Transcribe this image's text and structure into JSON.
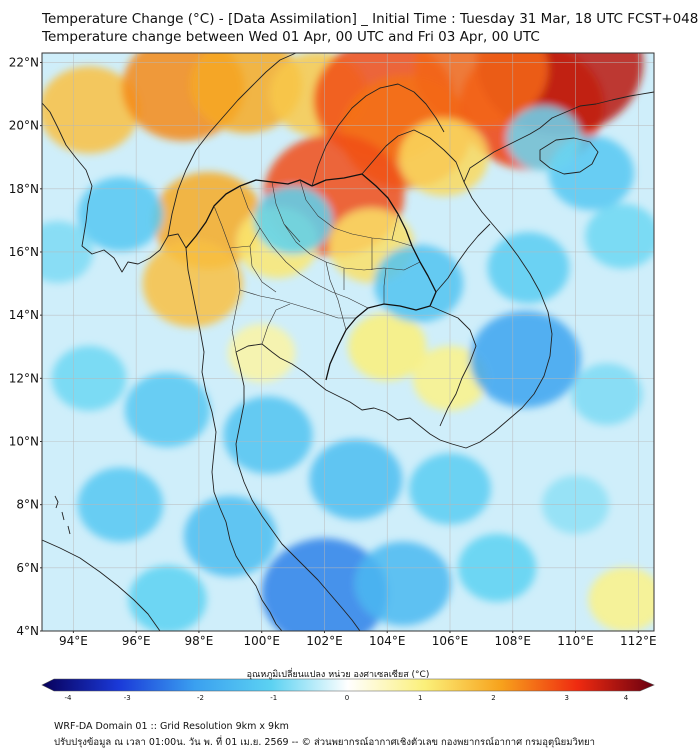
{
  "title": {
    "line1": "Temperature Change (°C) - [Data Assimilation] _ Initial Time : Tuesday 31 Mar, 18 UTC FCST+048",
    "line2": "Temperature change between Wed 01 Apr, 00 UTC and Fri 03 Apr, 00 UTC"
  },
  "map": {
    "lat_range": [
      4,
      22.3
    ],
    "lon_range": [
      93,
      112.5
    ],
    "lat_ticks": [
      "4°N",
      "6°N",
      "8°N",
      "10°N",
      "12°N",
      "14°N",
      "16°N",
      "18°N",
      "20°N",
      "22°N"
    ],
    "lon_ticks": [
      "94°E",
      "96°E",
      "98°E",
      "100°E",
      "102°E",
      "104°E",
      "106°E",
      "108°E",
      "110°E",
      "112°E"
    ],
    "lat_values": [
      4,
      6,
      8,
      10,
      12,
      14,
      16,
      18,
      20,
      22
    ],
    "lon_values": [
      94,
      96,
      98,
      100,
      102,
      104,
      106,
      108,
      110,
      112
    ],
    "field_blobs": [
      {
        "lon": 94.5,
        "lat": 20.5,
        "value": 1.6
      },
      {
        "lon": 97.5,
        "lat": 21.2,
        "value": 2.2
      },
      {
        "lon": 99.5,
        "lat": 21.3,
        "value": 1.9
      },
      {
        "lon": 101.8,
        "lat": 21.0,
        "value": 1.5
      },
      {
        "lon": 103.9,
        "lat": 20.8,
        "value": 2.7
      },
      {
        "lon": 104.6,
        "lat": 19.8,
        "value": 2.4
      },
      {
        "lon": 108.6,
        "lat": 20.6,
        "value": 2.8
      },
      {
        "lon": 109.5,
        "lat": 22.0,
        "value": 3.4
      },
      {
        "lon": 107.0,
        "lat": 21.8,
        "value": 2.5
      },
      {
        "lon": 102.3,
        "lat": 17.8,
        "value": 2.7
      },
      {
        "lon": 98.3,
        "lat": 17.0,
        "value": 1.9
      },
      {
        "lon": 97.8,
        "lat": 15.0,
        "value": 1.6
      },
      {
        "lon": 100.5,
        "lat": 16.3,
        "value": 1.1
      },
      {
        "lon": 103.5,
        "lat": 16.2,
        "value": 1.2
      },
      {
        "lon": 105.8,
        "lat": 19.0,
        "value": 1.3
      },
      {
        "lon": 104.0,
        "lat": 13.0,
        "value": 1.0
      },
      {
        "lon": 106.0,
        "lat": 12.0,
        "value": 0.9
      },
      {
        "lon": 100.0,
        "lat": 12.8,
        "value": 0.7
      },
      {
        "lon": 111.6,
        "lat": 5.0,
        "value": 0.9
      },
      {
        "lon": 95.5,
        "lat": 17.2,
        "value": -1.2
      },
      {
        "lon": 93.5,
        "lat": 16.0,
        "value": -0.8
      },
      {
        "lon": 101.0,
        "lat": 17.0,
        "value": -1.0
      },
      {
        "lon": 105.0,
        "lat": 15.0,
        "value": -1.3
      },
      {
        "lon": 108.4,
        "lat": 12.6,
        "value": -1.9
      },
      {
        "lon": 108.5,
        "lat": 15.5,
        "value": -1.1
      },
      {
        "lon": 110.5,
        "lat": 18.5,
        "value": -1.2
      },
      {
        "lon": 109.0,
        "lat": 19.6,
        "value": -0.9
      },
      {
        "lon": 111.5,
        "lat": 16.5,
        "value": -0.9
      },
      {
        "lon": 111.0,
        "lat": 11.5,
        "value": -0.8
      },
      {
        "lon": 94.5,
        "lat": 12.0,
        "value": -0.9
      },
      {
        "lon": 97.0,
        "lat": 11.0,
        "value": -1.2
      },
      {
        "lon": 100.2,
        "lat": 10.2,
        "value": -1.3
      },
      {
        "lon": 103.0,
        "lat": 8.8,
        "value": -1.4
      },
      {
        "lon": 106.0,
        "lat": 8.5,
        "value": -1.1
      },
      {
        "lon": 95.5,
        "lat": 8.0,
        "value": -1.2
      },
      {
        "lon": 99.0,
        "lat": 7.0,
        "value": -1.4
      },
      {
        "lon": 102.0,
        "lat": 5.2,
        "value": -2.3
      },
      {
        "lon": 104.5,
        "lat": 5.5,
        "value": -1.5
      },
      {
        "lon": 97.0,
        "lat": 5.0,
        "value": -1.0
      },
      {
        "lon": 107.5,
        "lat": 6.0,
        "value": -1.0
      },
      {
        "lon": 110.0,
        "lat": 8.0,
        "value": -0.7
      }
    ]
  },
  "colorbar": {
    "min": -4,
    "max": 4,
    "ticks": [
      "-4",
      "-3",
      "-2",
      "-1",
      "0",
      "1",
      "2",
      "3",
      "4"
    ],
    "tick_values": [
      -4,
      -3,
      -2,
      -1,
      0,
      1,
      2,
      3,
      4
    ],
    "label": "อุณหภูมิเปลี่ยนแปลง หน่วย องศาเซลเซียส (°C)",
    "stops": [
      {
        "v": -4,
        "color": "#08005a"
      },
      {
        "v": -3,
        "color": "#1a39d8"
      },
      {
        "v": -2,
        "color": "#3aa0f0"
      },
      {
        "v": -1,
        "color": "#5cd2f2"
      },
      {
        "v": 0,
        "color": "#ffffff"
      },
      {
        "v": 1,
        "color": "#fbf07a"
      },
      {
        "v": 2,
        "color": "#f7a21c"
      },
      {
        "v": 3,
        "color": "#ef2a10"
      },
      {
        "v": 4,
        "color": "#6a0010"
      }
    ]
  },
  "footer": {
    "line1": "WRF-DA Domain 01 :: Grid Resolution 9km x 9km",
    "line2": "ปรับปรุงข้อมูล ณ เวลา 01:00น. วัน พ. ที่ 01 เม.ย. 2569 -- © ส่วนพยากรณ์อากาศเชิงตัวเลข กองพยากรณ์อากาศ กรมอุตุนิยมวิทยา"
  }
}
